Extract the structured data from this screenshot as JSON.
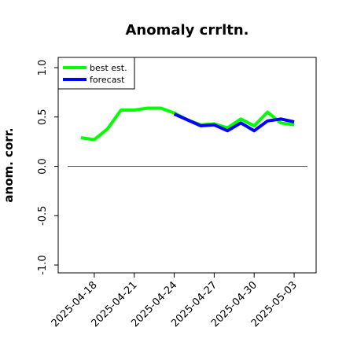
{
  "chart_data": {
    "type": "line",
    "title": "Anomaly crrltn.",
    "xlabel": "",
    "ylabel": "anom. corr.",
    "ylim": [
      -1.0,
      1.0
    ],
    "yticks": [
      -1.0,
      -0.5,
      0.0,
      0.5,
      1.0
    ],
    "ytick_labels": [
      "-1.0",
      "-0.5",
      "0.0",
      "0.5",
      "1.0"
    ],
    "xlim": [
      "2025-04-16",
      "2025-05-04"
    ],
    "xticks": [
      "2025-04-18",
      "2025-04-21",
      "2025-04-24",
      "2025-04-27",
      "2025-04-30",
      "2025-05-03"
    ],
    "highlight_tick": "2025-04-24",
    "highlight_color": "#2e8b2e",
    "reference_line": 0.0,
    "grid": false,
    "legend_position": "top-left",
    "series": [
      {
        "name": "best est.",
        "color": "#00ff00",
        "x": [
          "2025-04-17",
          "2025-04-18",
          "2025-04-19",
          "2025-04-20",
          "2025-04-21",
          "2025-04-22",
          "2025-04-23",
          "2025-04-24",
          "2025-04-25",
          "2025-04-26",
          "2025-04-27",
          "2025-04-28",
          "2025-04-29",
          "2025-04-30",
          "2025-05-01",
          "2025-05-02",
          "2025-05-03"
        ],
        "values": [
          0.29,
          0.27,
          0.38,
          0.57,
          0.57,
          0.59,
          0.59,
          0.54,
          0.47,
          0.42,
          0.43,
          0.39,
          0.48,
          0.41,
          0.55,
          0.44,
          0.42
        ]
      },
      {
        "name": "forecast",
        "color": "#0000ff",
        "x": [
          "2025-04-24",
          "2025-04-25",
          "2025-04-26",
          "2025-04-27",
          "2025-04-28",
          "2025-04-29",
          "2025-04-30",
          "2025-05-01",
          "2025-05-02",
          "2025-05-03"
        ],
        "values": [
          0.53,
          0.47,
          0.41,
          0.42,
          0.36,
          0.44,
          0.36,
          0.46,
          0.48,
          0.45
        ]
      }
    ]
  }
}
